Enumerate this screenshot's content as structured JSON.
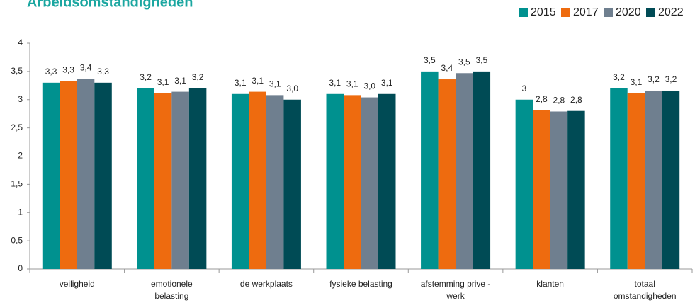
{
  "chart_data": {
    "type": "bar",
    "title": "Arbeidsomstandigheden",
    "categories": [
      "veiligheid",
      "emotionele belasting",
      "de werkplaats",
      "fysieke belasting",
      "afstemming prive - werk",
      "klanten",
      "totaal omstandigheden"
    ],
    "series": [
      {
        "name": "2015",
        "color": "#00918f",
        "values": [
          3.3,
          3.2,
          3.1,
          3.1,
          3.5,
          3.0,
          3.2
        ],
        "value_labels": [
          "3,3",
          "3,2",
          "3,1",
          "3,1",
          "3,5",
          "3",
          "3,2"
        ]
      },
      {
        "name": "2017",
        "color": "#ee6b0f",
        "values": [
          3.33,
          3.11,
          3.14,
          3.08,
          3.36,
          2.81,
          3.11
        ],
        "value_labels": [
          "3,3",
          "3,1",
          "3,1",
          "3,1",
          "3,4",
          "2,8",
          "3,1"
        ]
      },
      {
        "name": "2020",
        "color": "#6f7f8f",
        "values": [
          3.37,
          3.14,
          3.08,
          3.04,
          3.47,
          2.79,
          3.16
        ],
        "value_labels": [
          "3,4",
          "3,1",
          "3,1",
          "3,0",
          "3,5",
          "2,8",
          "3,2"
        ]
      },
      {
        "name": "2022",
        "color": "#004b55",
        "values": [
          3.3,
          3.2,
          3.0,
          3.1,
          3.5,
          2.8,
          3.16
        ],
        "value_labels": [
          "3,3",
          "3,2",
          "3,0",
          "3,1",
          "3,5",
          "2,8",
          "3,2"
        ]
      }
    ],
    "ylim": [
      0,
      4
    ],
    "yticks": [
      0,
      {
        "value": 0.5,
        "label": "0,5"
      },
      1,
      {
        "value": 1.5,
        "label": "1,5"
      },
      2,
      {
        "value": 2.5,
        "label": "2,5"
      },
      3,
      {
        "value": 3.5,
        "label": "3,5"
      },
      4
    ],
    "grid": false,
    "legend": "top-right"
  }
}
